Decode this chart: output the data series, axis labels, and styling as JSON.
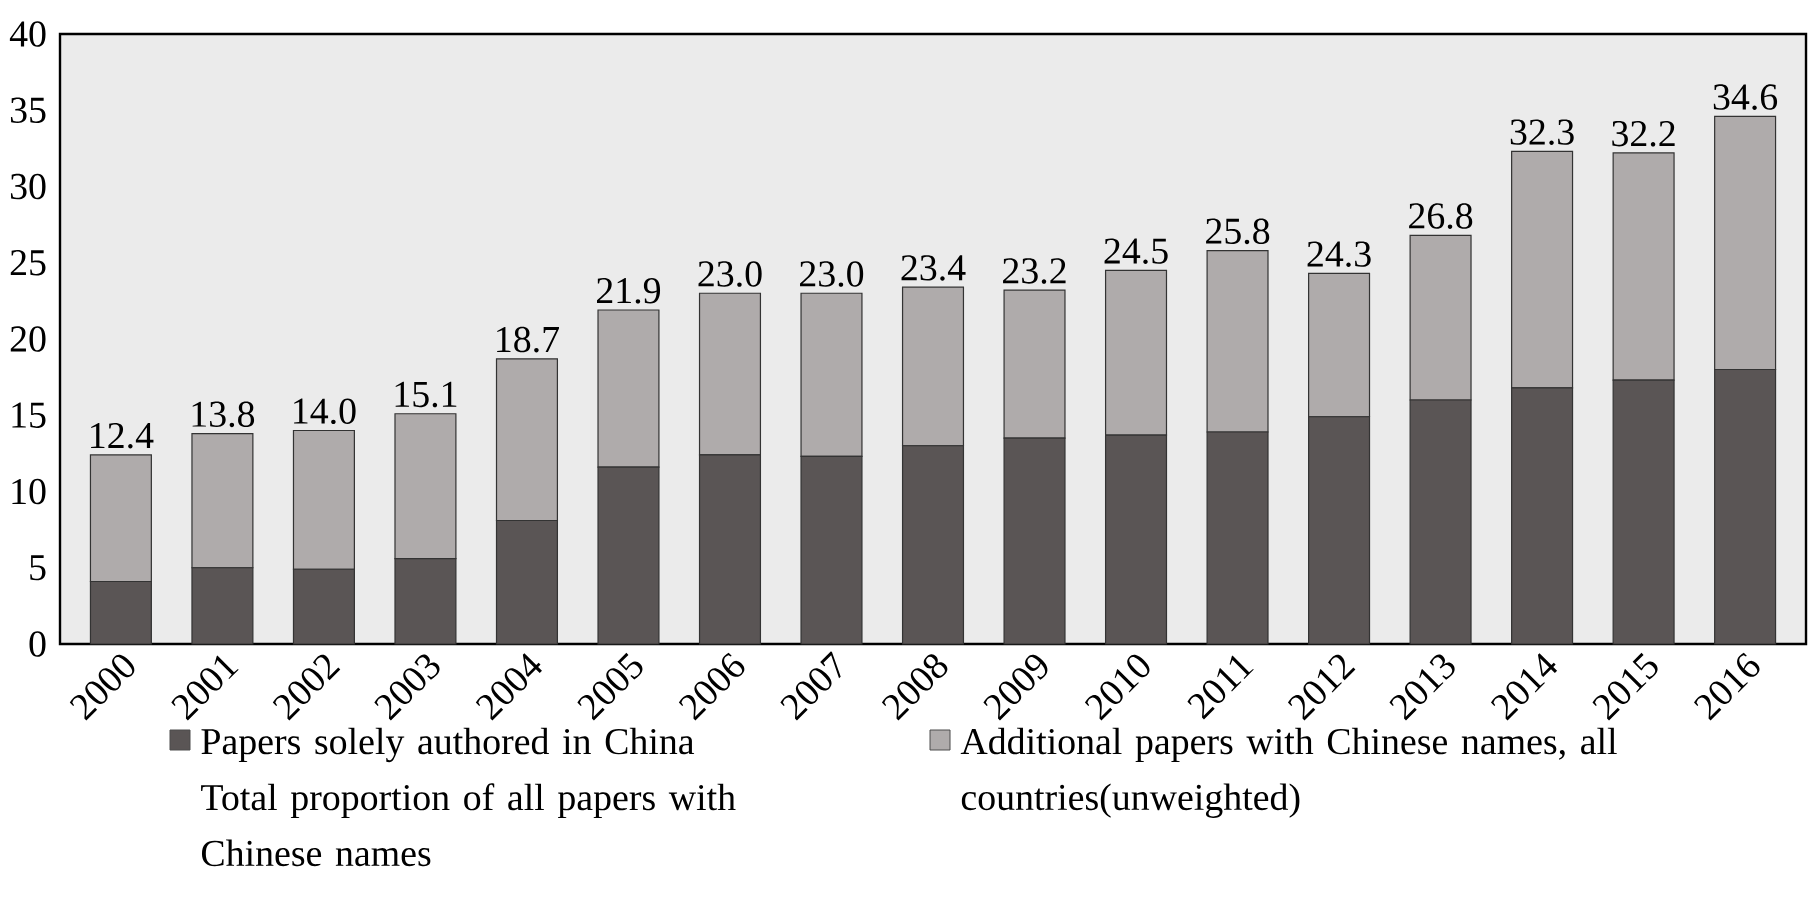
{
  "chart_data": {
    "type": "bar",
    "stacked": true,
    "categories": [
      "2000",
      "2001",
      "2002",
      "2003",
      "2004",
      "2005",
      "2006",
      "2007",
      "2008",
      "2009",
      "2010",
      "2011",
      "2012",
      "2013",
      "2014",
      "2015",
      "2016"
    ],
    "series": [
      {
        "name": "Papers solely authored in China",
        "color": "#5a5555",
        "values": [
          4.1,
          5.0,
          4.9,
          5.6,
          8.1,
          11.6,
          12.4,
          12.3,
          13.0,
          13.5,
          13.7,
          13.9,
          14.9,
          16.0,
          16.8,
          17.3,
          18.0
        ]
      },
      {
        "name": "Additional papers with Chinese names, all countries(unweighted)",
        "color": "#afabab",
        "values": [
          8.3,
          8.8,
          9.1,
          9.5,
          10.6,
          10.3,
          10.6,
          10.7,
          10.4,
          9.7,
          10.8,
          11.9,
          9.4,
          10.8,
          15.5,
          14.9,
          16.6
        ]
      }
    ],
    "totals": [
      "12.4",
      "13.8",
      "14.0",
      "15.1",
      "18.7",
      "21.9",
      "23.0",
      "23.0",
      "23.4",
      "23.2",
      "24.5",
      "25.8",
      "24.3",
      "26.8",
      "32.3",
      "32.2",
      "34.6"
    ],
    "ylim": [
      0,
      40
    ],
    "yticks": [
      0,
      5,
      10,
      15,
      20,
      25,
      30,
      35,
      40
    ],
    "legend": "bottom",
    "annotations": [
      "Total proportion of all papers with Chinese names"
    ]
  }
}
